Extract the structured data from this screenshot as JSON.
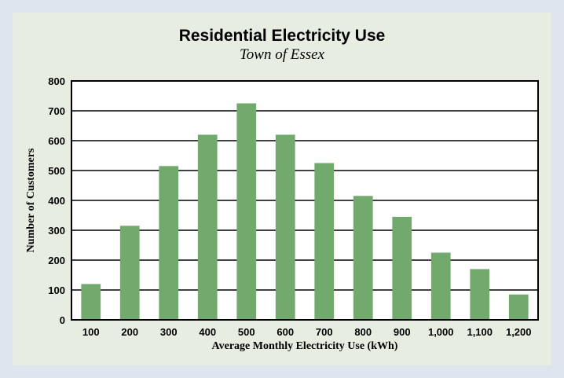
{
  "chart_data": {
    "type": "bar",
    "title": "Residential Electricity Use",
    "subtitle": "Town of Essex",
    "xlabel": "Average Monthly Electricity Use (kWh)",
    "ylabel": "Number of Customers",
    "categories": [
      "100",
      "200",
      "300",
      "400",
      "500",
      "600",
      "700",
      "800",
      "900",
      "1,000",
      "1,100",
      "1,200"
    ],
    "values": [
      120,
      315,
      515,
      620,
      725,
      620,
      525,
      415,
      345,
      225,
      170,
      85
    ],
    "ylim": [
      0,
      800
    ],
    "yticks": [
      "0",
      "100",
      "200",
      "300",
      "400",
      "500",
      "600",
      "700",
      "800"
    ],
    "grid": true,
    "bar_color": "#72aa6e",
    "legend": "none"
  }
}
